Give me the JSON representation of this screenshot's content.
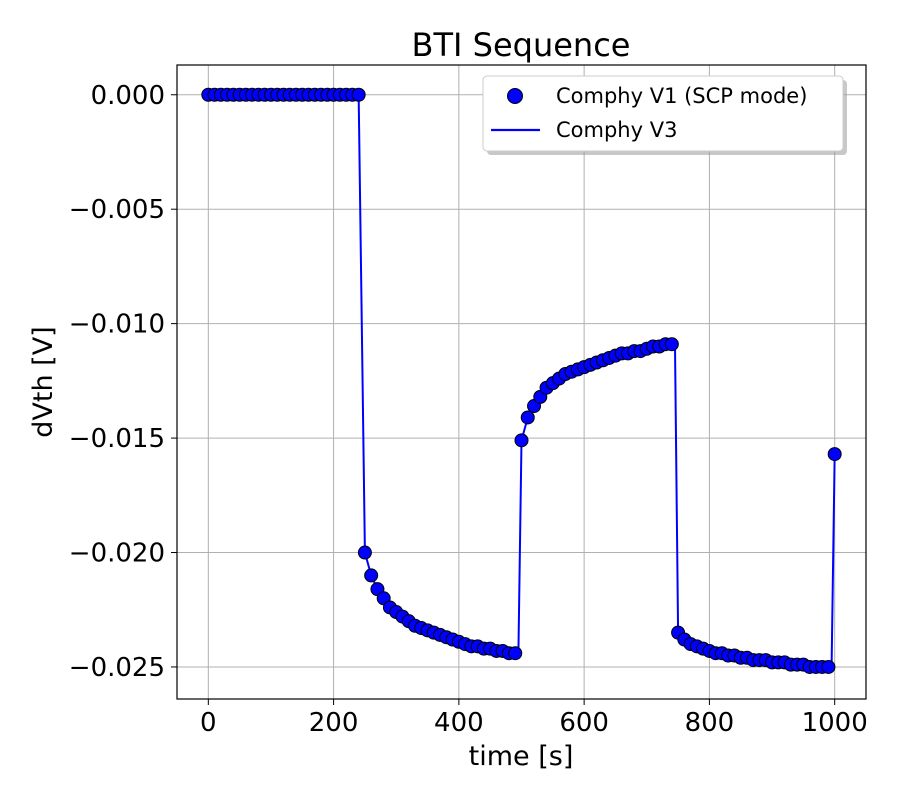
{
  "chart_data": {
    "type": "line",
    "title": "BTI Sequence",
    "xlabel": "time [s]",
    "ylabel": "dVth [V]",
    "xlim": [
      -50,
      1050
    ],
    "ylim": [
      -0.0264,
      0.0013
    ],
    "xticks": [
      0,
      200,
      400,
      600,
      800,
      1000
    ],
    "yticks": [
      0.0,
      -0.005,
      -0.01,
      -0.015,
      -0.02,
      -0.025
    ],
    "xtick_labels": [
      "0",
      "200",
      "400",
      "600",
      "800",
      "1000"
    ],
    "ytick_labels": [
      "0.000",
      "−0.005",
      "−0.010",
      "−0.015",
      "−0.020",
      "−0.025"
    ],
    "grid": true,
    "legend_position": "top-right",
    "series": [
      {
        "name": "Comphy V1 (SCP mode)",
        "style": "markers",
        "color": "#0000ff",
        "edge_color": "#000000",
        "x": [
          0,
          10,
          20,
          30,
          40,
          50,
          60,
          70,
          80,
          90,
          100,
          110,
          120,
          130,
          140,
          150,
          160,
          170,
          180,
          190,
          200,
          210,
          220,
          230,
          240,
          250,
          260,
          270,
          280,
          290,
          300,
          310,
          320,
          330,
          340,
          350,
          360,
          370,
          380,
          390,
          400,
          410,
          420,
          430,
          440,
          450,
          460,
          470,
          480,
          490,
          500,
          510,
          520,
          530,
          540,
          550,
          560,
          570,
          580,
          590,
          600,
          610,
          620,
          630,
          640,
          650,
          660,
          670,
          680,
          690,
          700,
          710,
          720,
          730,
          740,
          750,
          760,
          770,
          780,
          790,
          800,
          810,
          820,
          830,
          840,
          850,
          860,
          870,
          880,
          890,
          900,
          910,
          920,
          930,
          940,
          950,
          960,
          970,
          980,
          990,
          1000
        ],
        "y": [
          0,
          0,
          0,
          0,
          0,
          0,
          0,
          0,
          0,
          0,
          0,
          0,
          0,
          0,
          0,
          0,
          0,
          0,
          0,
          0,
          0,
          0,
          0,
          0,
          0,
          -0.02,
          -0.021,
          -0.0216,
          -0.022,
          -0.0224,
          -0.0226,
          -0.0228,
          -0.023,
          -0.0232,
          -0.0233,
          -0.0234,
          -0.0235,
          -0.0236,
          -0.0237,
          -0.0238,
          -0.0239,
          -0.024,
          -0.0241,
          -0.0241,
          -0.0242,
          -0.0242,
          -0.0243,
          -0.0243,
          -0.0244,
          -0.0244,
          -0.0151,
          -0.0141,
          -0.0136,
          -0.0132,
          -0.0128,
          -0.0126,
          -0.0124,
          -0.0122,
          -0.0121,
          -0.012,
          -0.0119,
          -0.0118,
          -0.0117,
          -0.0116,
          -0.0115,
          -0.0114,
          -0.0113,
          -0.0113,
          -0.0112,
          -0.0112,
          -0.0111,
          -0.011,
          -0.011,
          -0.0109,
          -0.0109,
          -0.0235,
          -0.0238,
          -0.024,
          -0.0241,
          -0.0242,
          -0.0243,
          -0.0244,
          -0.0244,
          -0.0245,
          -0.0245,
          -0.0246,
          -0.0246,
          -0.0247,
          -0.0247,
          -0.0247,
          -0.0248,
          -0.0248,
          -0.0248,
          -0.0249,
          -0.0249,
          -0.0249,
          -0.025,
          -0.025,
          -0.025,
          -0.025,
          -0.0157
        ]
      },
      {
        "name": "Comphy V3",
        "style": "line",
        "color": "#0000ff",
        "x": [
          0,
          240,
          250,
          260,
          270,
          280,
          290,
          300,
          310,
          320,
          330,
          340,
          350,
          360,
          370,
          380,
          390,
          400,
          410,
          420,
          430,
          440,
          450,
          460,
          470,
          480,
          490,
          495,
          500,
          510,
          520,
          530,
          540,
          550,
          560,
          570,
          580,
          590,
          600,
          610,
          620,
          630,
          640,
          650,
          660,
          670,
          680,
          690,
          700,
          710,
          720,
          730,
          740,
          745,
          750,
          760,
          770,
          780,
          790,
          800,
          810,
          820,
          830,
          840,
          850,
          860,
          870,
          880,
          890,
          900,
          910,
          920,
          930,
          940,
          950,
          960,
          970,
          980,
          990,
          995,
          1000
        ],
        "y": [
          0,
          0,
          -0.02,
          -0.021,
          -0.0216,
          -0.022,
          -0.0224,
          -0.0226,
          -0.0228,
          -0.023,
          -0.0232,
          -0.0233,
          -0.0234,
          -0.0235,
          -0.0236,
          -0.0237,
          -0.0238,
          -0.0239,
          -0.024,
          -0.0241,
          -0.0241,
          -0.0242,
          -0.0242,
          -0.0243,
          -0.0243,
          -0.0244,
          -0.0244,
          -0.0245,
          -0.0151,
          -0.0141,
          -0.0136,
          -0.0132,
          -0.0128,
          -0.0126,
          -0.0124,
          -0.0122,
          -0.0121,
          -0.012,
          -0.0119,
          -0.0118,
          -0.0117,
          -0.0116,
          -0.0115,
          -0.0114,
          -0.0113,
          -0.0113,
          -0.0112,
          -0.0112,
          -0.0111,
          -0.011,
          -0.011,
          -0.0109,
          -0.0109,
          -0.0108,
          -0.0235,
          -0.0238,
          -0.024,
          -0.0241,
          -0.0242,
          -0.0243,
          -0.0244,
          -0.0244,
          -0.0245,
          -0.0245,
          -0.0246,
          -0.0246,
          -0.0247,
          -0.0247,
          -0.0247,
          -0.0248,
          -0.0248,
          -0.0248,
          -0.0249,
          -0.0249,
          -0.0249,
          -0.025,
          -0.025,
          -0.025,
          -0.025,
          -0.0251,
          -0.0157
        ]
      }
    ]
  }
}
